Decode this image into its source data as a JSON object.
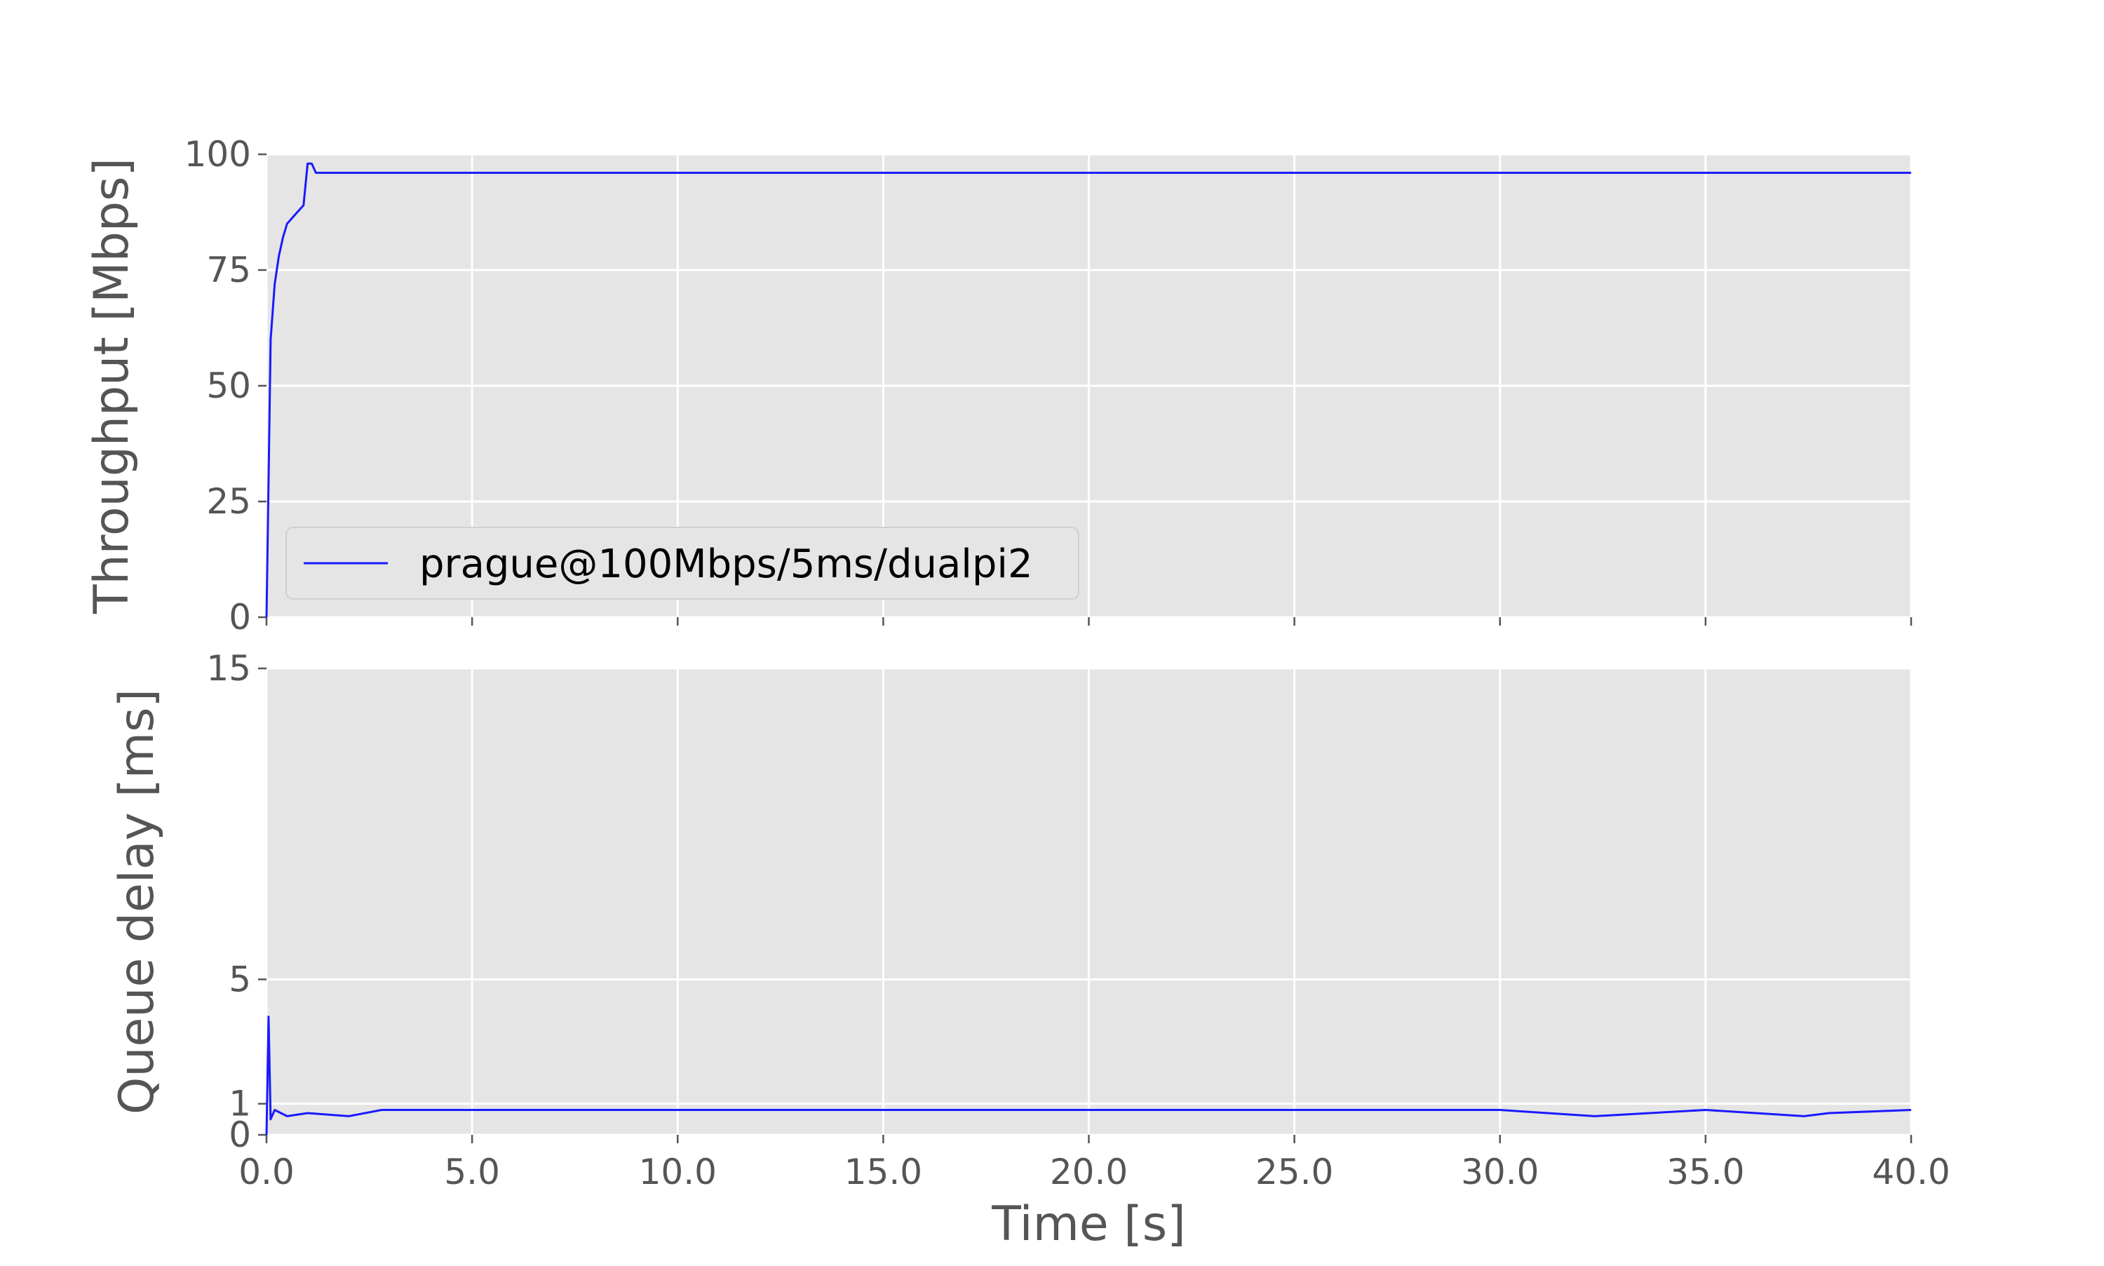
{
  "chart_data": [
    {
      "type": "line",
      "title": "",
      "xlabel": "",
      "ylabel": "Throughput [Mbps]",
      "xlim": [
        0,
        40
      ],
      "ylim": [
        0,
        100
      ],
      "xticks": [
        0,
        5,
        10,
        15,
        20,
        25,
        30,
        35,
        40
      ],
      "yticks": [
        0,
        25,
        50,
        75,
        100
      ],
      "ytick_labels": [
        "0",
        "25",
        "50",
        "75",
        "100"
      ],
      "grid": true,
      "legend": {
        "entries": [
          "prague@100Mbps/5ms/dualpi2"
        ],
        "position": "lower-left"
      },
      "series": [
        {
          "name": "prague@100Mbps/5ms/dualpi2",
          "color": "#1a1aff",
          "x": [
            0.0,
            0.1,
            0.2,
            0.3,
            0.4,
            0.5,
            0.6,
            0.7,
            0.8,
            0.9,
            1.0,
            1.1,
            1.2,
            1.5,
            2.0,
            3.0,
            5.0,
            10.0,
            15.0,
            20.0,
            25.0,
            30.0,
            35.0,
            40.0
          ],
          "y": [
            0,
            60,
            72,
            78,
            82,
            85,
            86,
            87,
            88,
            89,
            98,
            98,
            96,
            96,
            96,
            96,
            96,
            96,
            96,
            96,
            96,
            96,
            96,
            96
          ]
        }
      ]
    },
    {
      "type": "line",
      "title": "",
      "xlabel": "Time [s]",
      "ylabel": "Queue delay [ms]",
      "xlim": [
        0,
        40
      ],
      "ylim": [
        0,
        15
      ],
      "xticks": [
        0,
        5,
        10,
        15,
        20,
        25,
        30,
        35,
        40
      ],
      "xtick_labels": [
        "0.0",
        "5.0",
        "10.0",
        "15.0",
        "20.0",
        "25.0",
        "30.0",
        "35.0",
        "40.0"
      ],
      "yticks": [
        0,
        1,
        5,
        15
      ],
      "ytick_labels": [
        "0",
        "1",
        "5",
        "15"
      ],
      "grid": true,
      "series": [
        {
          "name": "prague@100Mbps/5ms/dualpi2",
          "color": "#1a1aff",
          "x": [
            0.0,
            0.05,
            0.1,
            0.2,
            0.5,
            1.0,
            2.0,
            2.8,
            3.0,
            5.0,
            10.0,
            15.0,
            20.0,
            25.0,
            30.0,
            32.3,
            35.0,
            37.4,
            38.0,
            40.0
          ],
          "y": [
            0.0,
            3.8,
            0.5,
            0.8,
            0.6,
            0.7,
            0.6,
            0.8,
            0.8,
            0.8,
            0.8,
            0.8,
            0.8,
            0.8,
            0.8,
            0.6,
            0.8,
            0.6,
            0.7,
            0.8
          ]
        }
      ]
    }
  ]
}
